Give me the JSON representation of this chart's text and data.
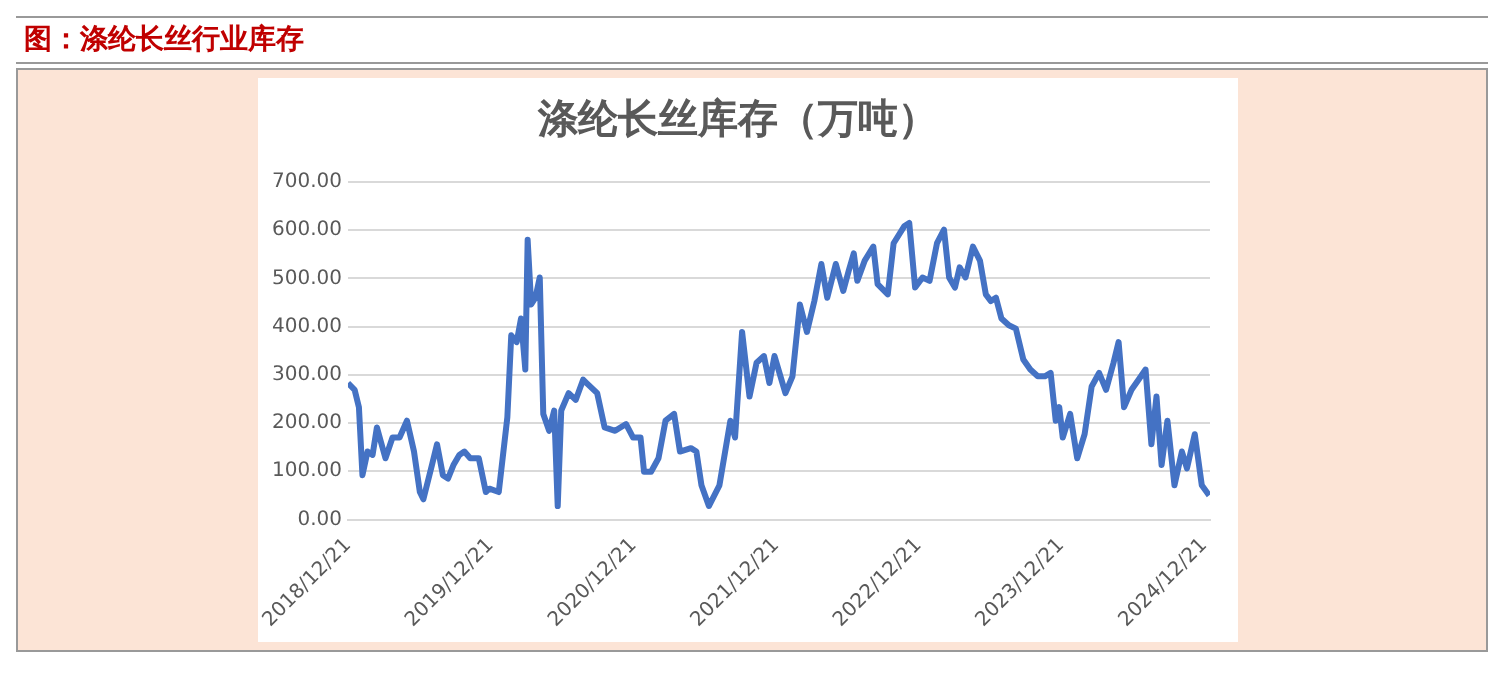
{
  "chart_data": {
    "type": "line",
    "title": "图：涤纶长丝行业库存",
    "subtitle": "涤纶长丝库存（万吨）",
    "x": [
      "2018-12-21",
      "2019-01-07",
      "2019-01-18",
      "2019-01-27",
      "2019-02-09",
      "2019-02-22",
      "2019-03-05",
      "2019-03-17",
      "2019-03-27",
      "2019-04-14",
      "2019-05-02",
      "2019-05-21",
      "2019-06-08",
      "2019-06-23",
      "2019-07-02",
      "2019-07-24",
      "2019-08-06",
      "2019-08-21",
      "2019-09-03",
      "2019-09-17",
      "2019-10-02",
      "2019-10-15",
      "2019-10-30",
      "2019-11-21",
      "2019-12-09",
      "2019-12-18",
      "2020-01-11",
      "2020-02-02",
      "2020-02-12",
      "2020-02-26",
      "2020-03-08",
      "2020-03-19",
      "2020-03-25",
      "2020-04-03",
      "2020-04-14",
      "2020-04-25",
      "2020-05-04",
      "2020-05-19",
      "2020-06-01",
      "2020-06-10",
      "2020-06-19",
      "2020-07-08",
      "2020-07-26",
      "2020-08-14",
      "2020-08-23",
      "2020-09-19",
      "2020-10-08",
      "2020-11-04",
      "2020-12-02",
      "2020-12-20",
      "2021-01-08",
      "2021-01-17",
      "2021-02-04",
      "2021-02-23",
      "2021-03-13",
      "2021-04-04",
      "2021-04-19",
      "2021-05-17",
      "2021-05-31",
      "2021-06-13",
      "2021-07-02",
      "2021-07-29",
      "2021-08-26",
      "2021-09-07",
      "2021-09-25",
      "2021-10-14",
      "2021-11-01",
      "2021-11-20",
      "2021-12-04",
      "2021-12-17",
      "2022-01-14",
      "2022-02-01",
      "2022-02-20",
      "2022-03-10",
      "2022-03-29",
      "2022-04-16",
      "2022-05-01",
      "2022-05-23",
      "2022-06-11",
      "2022-06-25",
      "2022-07-08",
      "2022-07-17",
      "2022-08-05",
      "2022-08-27",
      "2022-09-07",
      "2022-10-03",
      "2022-10-18",
      "2022-11-14",
      "2022-11-27",
      "2022-12-12",
      "2022-12-31",
      "2023-01-18",
      "2023-02-06",
      "2023-02-24",
      "2023-03-09",
      "2023-03-24",
      "2023-04-05",
      "2023-04-20",
      "2023-05-09",
      "2023-05-27",
      "2023-06-11",
      "2023-06-24",
      "2023-07-07",
      "2023-07-21",
      "2023-08-09",
      "2023-08-27",
      "2023-09-15",
      "2023-10-03",
      "2023-10-22",
      "2023-11-09",
      "2023-11-24",
      "2023-12-07",
      "2023-12-16",
      "2023-12-25",
      "2024-01-13",
      "2024-01-31",
      "2024-02-19",
      "2024-03-08",
      "2024-03-27",
      "2024-04-14",
      "2024-05-03",
      "2024-05-16",
      "2024-05-30",
      "2024-06-18",
      "2024-07-06",
      "2024-07-24",
      "2024-08-08",
      "2024-08-21",
      "2024-09-03",
      "2024-09-18",
      "2024-10-06",
      "2024-10-25",
      "2024-11-07",
      "2024-11-27",
      "2024-12-15",
      "2025-01-03"
    ],
    "series": [
      {
        "color": "#4472c4",
        "values": [
          283,
          269,
          233,
          92,
          141,
          134,
          191,
          156,
          127,
          170,
          170,
          205,
          141,
          57,
          42,
          113,
          156,
          92,
          85,
          113,
          134,
          141,
          127,
          127,
          57,
          64,
          57,
          212,
          382,
          368,
          417,
          311,
          580,
          446,
          460,
          502,
          219,
          184,
          226,
          28,
          226,
          262,
          248,
          290,
          283,
          262,
          191,
          184,
          198,
          170,
          170,
          99,
          99,
          127,
          205,
          219,
          141,
          148,
          141,
          71,
          28,
          71,
          205,
          170,
          389,
          255,
          325,
          339,
          283,
          339,
          262,
          297,
          446,
          389,
          453,
          530,
          460,
          530,
          474,
          516,
          552,
          495,
          537,
          566,
          488,
          467,
          573,
          608,
          615,
          481,
          502,
          495,
          573,
          601,
          502,
          481,
          523,
          502,
          566,
          537,
          467,
          453,
          460,
          417,
          403,
          396,
          332,
          311,
          297,
          297,
          304,
          205,
          233,
          170,
          219,
          127,
          177,
          276,
          304,
          269,
          325,
          368,
          233,
          269,
          290,
          311,
          156,
          255,
          113,
          205,
          71,
          141,
          106,
          177,
          71,
          50
        ]
      }
    ],
    "xlim": [
      "2018-12-21",
      "2025-01-05"
    ],
    "xticks": [
      {
        "value": "2018-12-21",
        "label": "2018/12/21"
      },
      {
        "value": "2019-12-21",
        "label": "2019/12/21"
      },
      {
        "value": "2020-12-21",
        "label": "2020/12/21"
      },
      {
        "value": "2021-12-21",
        "label": "2021/12/21"
      },
      {
        "value": "2022-12-21",
        "label": "2022/12/21"
      },
      {
        "value": "2023-12-21",
        "label": "2023/12/21"
      },
      {
        "value": "2024-12-21",
        "label": "2024/12/21"
      }
    ],
    "ylim": [
      0,
      700
    ],
    "yticks": [
      {
        "value": 0,
        "label": "0.00"
      },
      {
        "value": 100,
        "label": "100.00"
      },
      {
        "value": 200,
        "label": "200.00"
      },
      {
        "value": 300,
        "label": "300.00"
      },
      {
        "value": 400,
        "label": "400.00"
      },
      {
        "value": 500,
        "label": "500.00"
      },
      {
        "value": 600,
        "label": "600.00"
      },
      {
        "value": 700,
        "label": "700.00"
      }
    ],
    "grid": "y",
    "marker": "none",
    "line_style": "solid"
  }
}
